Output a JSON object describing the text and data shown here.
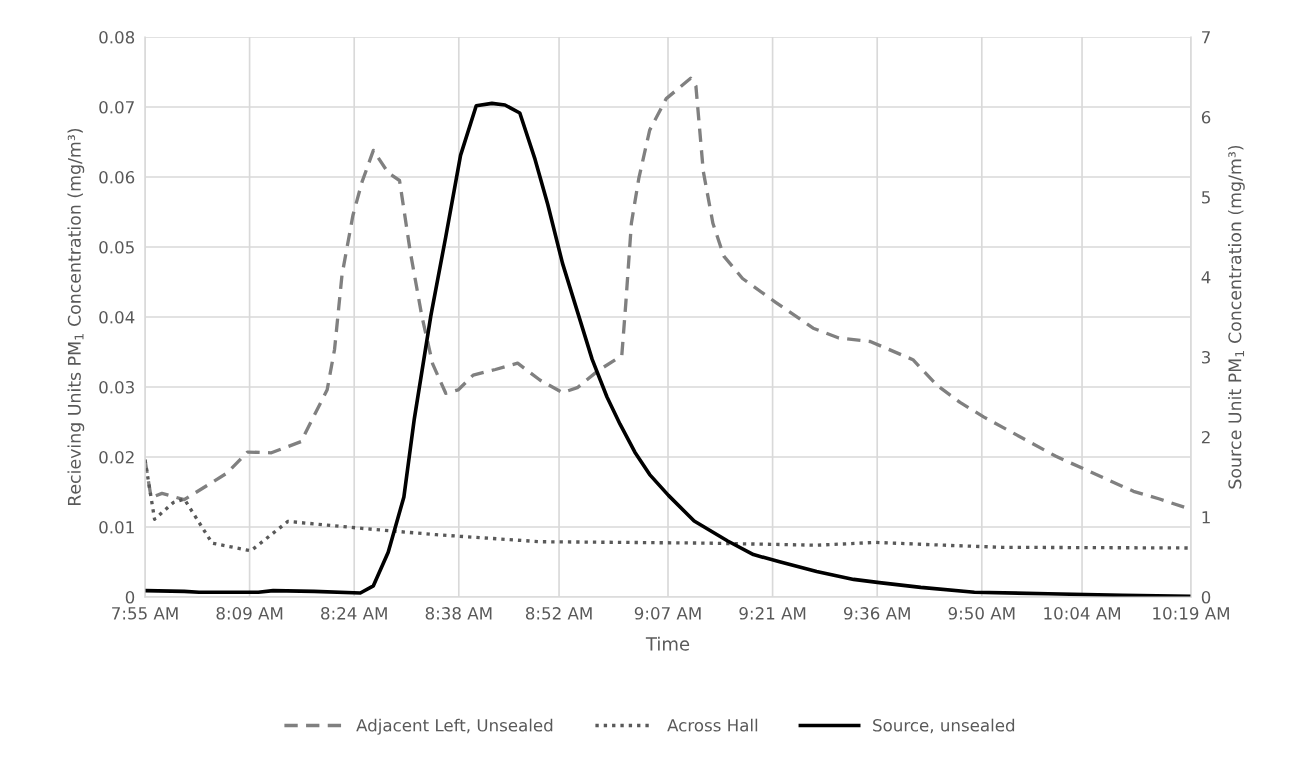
{
  "chart_data": {
    "type": "line",
    "xlabel": "Time",
    "ylabel": "Recieving Units PM$_{1}$ Concentration (mg/m³)",
    "y2label": "Source Unit PM$_{1}$ Concentration (mg/m³)",
    "xlim": [
      7.917,
      10.317
    ],
    "xticks": [
      {
        "value": 7.917,
        "label": "7:55 AM"
      },
      {
        "value": 8.157,
        "label": "8:09 AM"
      },
      {
        "value": 8.397,
        "label": "8:24 AM"
      },
      {
        "value": 8.637,
        "label": "8:38 AM"
      },
      {
        "value": 8.867,
        "label": "8:52 AM"
      },
      {
        "value": 9.117,
        "label": "9:07 AM"
      },
      {
        "value": 9.357,
        "label": "9:21 AM"
      },
      {
        "value": 9.597,
        "label": "9:36 AM"
      },
      {
        "value": 9.837,
        "label": "9:50 AM"
      },
      {
        "value": 10.067,
        "label": "10:04 AM"
      },
      {
        "value": 10.317,
        "label": "10:19 AM"
      }
    ],
    "ylim": [
      0,
      0.08
    ],
    "yticks": [
      0,
      0.01,
      0.02,
      0.03,
      0.04,
      0.05,
      0.06,
      0.07,
      0.08
    ],
    "y2lim": [
      0,
      7
    ],
    "y2ticks": [
      0,
      1,
      2,
      3,
      4,
      5,
      6,
      7
    ],
    "grid": true,
    "legend": "bottom",
    "marker": "none",
    "series": [
      {
        "name": "Adjacent Left, Unsealed",
        "color": "#808080",
        "line_style": "dashed",
        "x": [
          7.917,
          7.931,
          7.956,
          8.007,
          8.105,
          8.152,
          8.207,
          8.275,
          8.335,
          8.352,
          8.369,
          8.394,
          8.415,
          8.441,
          8.475,
          8.501,
          8.526,
          8.552,
          8.577,
          8.607,
          8.636,
          8.67,
          8.721,
          8.772,
          8.823,
          8.875,
          8.909,
          8.956,
          9.011,
          9.02,
          9.033,
          9.05,
          9.075,
          9.113,
          9.169,
          9.181,
          9.198,
          9.22,
          9.245,
          9.288,
          9.364,
          9.45,
          9.509,
          9.581,
          9.679,
          9.735,
          9.787,
          9.842,
          10.007,
          10.185,
          10.245,
          10.317
        ],
        "values": [
          0.0196,
          0.0142,
          0.0148,
          0.0139,
          0.0177,
          0.0207,
          0.0206,
          0.0222,
          0.0296,
          0.0354,
          0.046,
          0.0545,
          0.0593,
          0.0638,
          0.0606,
          0.0595,
          0.0492,
          0.0402,
          0.0333,
          0.0291,
          0.0296,
          0.0317,
          0.0325,
          0.0334,
          0.031,
          0.0292,
          0.0299,
          0.0323,
          0.0345,
          0.0418,
          0.0534,
          0.0598,
          0.0667,
          0.0712,
          0.0741,
          0.073,
          0.0608,
          0.0534,
          0.0487,
          0.0455,
          0.0421,
          0.0384,
          0.037,
          0.0365,
          0.0339,
          0.0302,
          0.0278,
          0.0257,
          0.0201,
          0.0151,
          0.014,
          0.0125
        ]
      },
      {
        "name": "Across Hall",
        "color": "#595959",
        "line_style": "dotted",
        "x": [
          7.917,
          7.939,
          7.982,
          8.007,
          8.071,
          8.16,
          8.245,
          8.415,
          8.585,
          8.823,
          9.203,
          9.458,
          9.594,
          9.75,
          9.883,
          10.317
        ],
        "values": [
          0.0196,
          0.0111,
          0.0135,
          0.014,
          0.0077,
          0.0066,
          0.0108,
          0.0098,
          0.0089,
          0.0079,
          0.0077,
          0.0074,
          0.0078,
          0.0074,
          0.0071,
          0.007
        ]
      },
      {
        "name": "Source, unsealed",
        "color": "#000000",
        "line_style": "solid",
        "axis": "y2",
        "x": [
          7.917,
          8.007,
          8.041,
          8.177,
          8.211,
          8.305,
          8.411,
          8.441,
          8.475,
          8.511,
          8.535,
          8.573,
          8.607,
          8.641,
          8.677,
          8.713,
          8.743,
          8.777,
          8.812,
          8.841,
          8.875,
          8.909,
          8.943,
          8.977,
          9.007,
          9.041,
          9.075,
          9.118,
          9.177,
          9.254,
          9.313,
          9.373,
          9.458,
          9.543,
          9.602,
          9.697,
          9.82,
          9.99,
          10.16,
          10.317
        ],
        "values": [
          0.08,
          0.07,
          0.06,
          0.06,
          0.08,
          0.07,
          0.05,
          0.14,
          0.56,
          1.25,
          2.23,
          3.52,
          4.5,
          5.52,
          6.14,
          6.17,
          6.15,
          6.05,
          5.47,
          4.91,
          4.17,
          3.57,
          2.97,
          2.5,
          2.16,
          1.81,
          1.53,
          1.27,
          0.95,
          0.7,
          0.53,
          0.44,
          0.32,
          0.22,
          0.18,
          0.12,
          0.06,
          0.04,
          0.02,
          0.01
        ]
      }
    ]
  }
}
